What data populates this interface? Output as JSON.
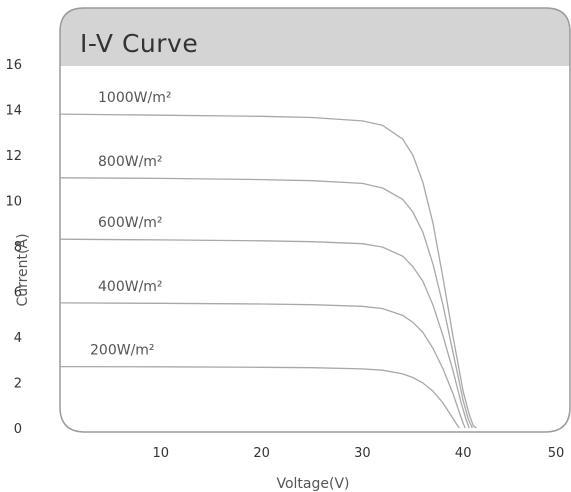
{
  "chart_data": {
    "type": "line",
    "title": "I-V Curve",
    "xlabel": "Voltage(V)",
    "ylabel": "Current(A)",
    "xlim": [
      0,
      50
    ],
    "ylim": [
      0,
      16
    ],
    "x_ticks": [
      "10",
      "20",
      "30",
      "40",
      "50"
    ],
    "y_ticks": [
      "0",
      "2",
      "4",
      "6",
      "8",
      "10",
      "12",
      "14",
      "16"
    ],
    "grid": false,
    "legend": "inline labels above each curve",
    "colors": {
      "curve": "#a8a8a8",
      "header": "#d4d4d4",
      "frame": "#9a9a9a"
    },
    "series": [
      {
        "name": "1000W/m²",
        "isc": 13.8,
        "x": [
          0,
          10,
          20,
          25,
          30,
          32,
          34,
          35,
          36,
          37,
          38,
          39,
          40,
          40.6,
          41.0,
          41.3
        ],
        "y": [
          13.8,
          13.75,
          13.7,
          13.65,
          13.5,
          13.3,
          12.7,
          12.0,
          10.8,
          9.0,
          6.6,
          4.0,
          1.6,
          0.6,
          0.1,
          0
        ]
      },
      {
        "name": "800W/m²",
        "isc": 11.0,
        "x": [
          0,
          10,
          20,
          25,
          30,
          32,
          34,
          35,
          36,
          37,
          38,
          39,
          40,
          40.5,
          40.9
        ],
        "y": [
          11.0,
          10.97,
          10.92,
          10.87,
          10.75,
          10.55,
          10.05,
          9.5,
          8.6,
          7.2,
          5.4,
          3.3,
          1.2,
          0.4,
          0
        ]
      },
      {
        "name": "600W/m²",
        "isc": 8.3,
        "x": [
          0,
          10,
          20,
          25,
          30,
          32,
          34,
          35,
          36,
          37,
          38,
          39,
          39.8,
          40.3,
          40.6
        ],
        "y": [
          8.3,
          8.27,
          8.23,
          8.19,
          8.1,
          7.95,
          7.55,
          7.1,
          6.45,
          5.4,
          4.05,
          2.5,
          1.1,
          0.35,
          0
        ]
      },
      {
        "name": "400W/m²",
        "isc": 5.5,
        "x": [
          0,
          10,
          20,
          25,
          30,
          32,
          34,
          35,
          36,
          37,
          38,
          39,
          39.6,
          40.0,
          40.2
        ],
        "y": [
          5.5,
          5.48,
          5.45,
          5.42,
          5.35,
          5.25,
          4.95,
          4.65,
          4.2,
          3.5,
          2.6,
          1.5,
          0.7,
          0.2,
          0
        ]
      },
      {
        "name": "200W/m²",
        "isc": 2.7,
        "x": [
          0,
          10,
          20,
          25,
          30,
          32,
          34,
          35,
          36,
          37,
          38,
          38.8,
          39.3,
          39.6
        ],
        "y": [
          2.7,
          2.69,
          2.67,
          2.65,
          2.6,
          2.54,
          2.38,
          2.22,
          1.98,
          1.62,
          1.1,
          0.55,
          0.2,
          0
        ]
      }
    ]
  }
}
